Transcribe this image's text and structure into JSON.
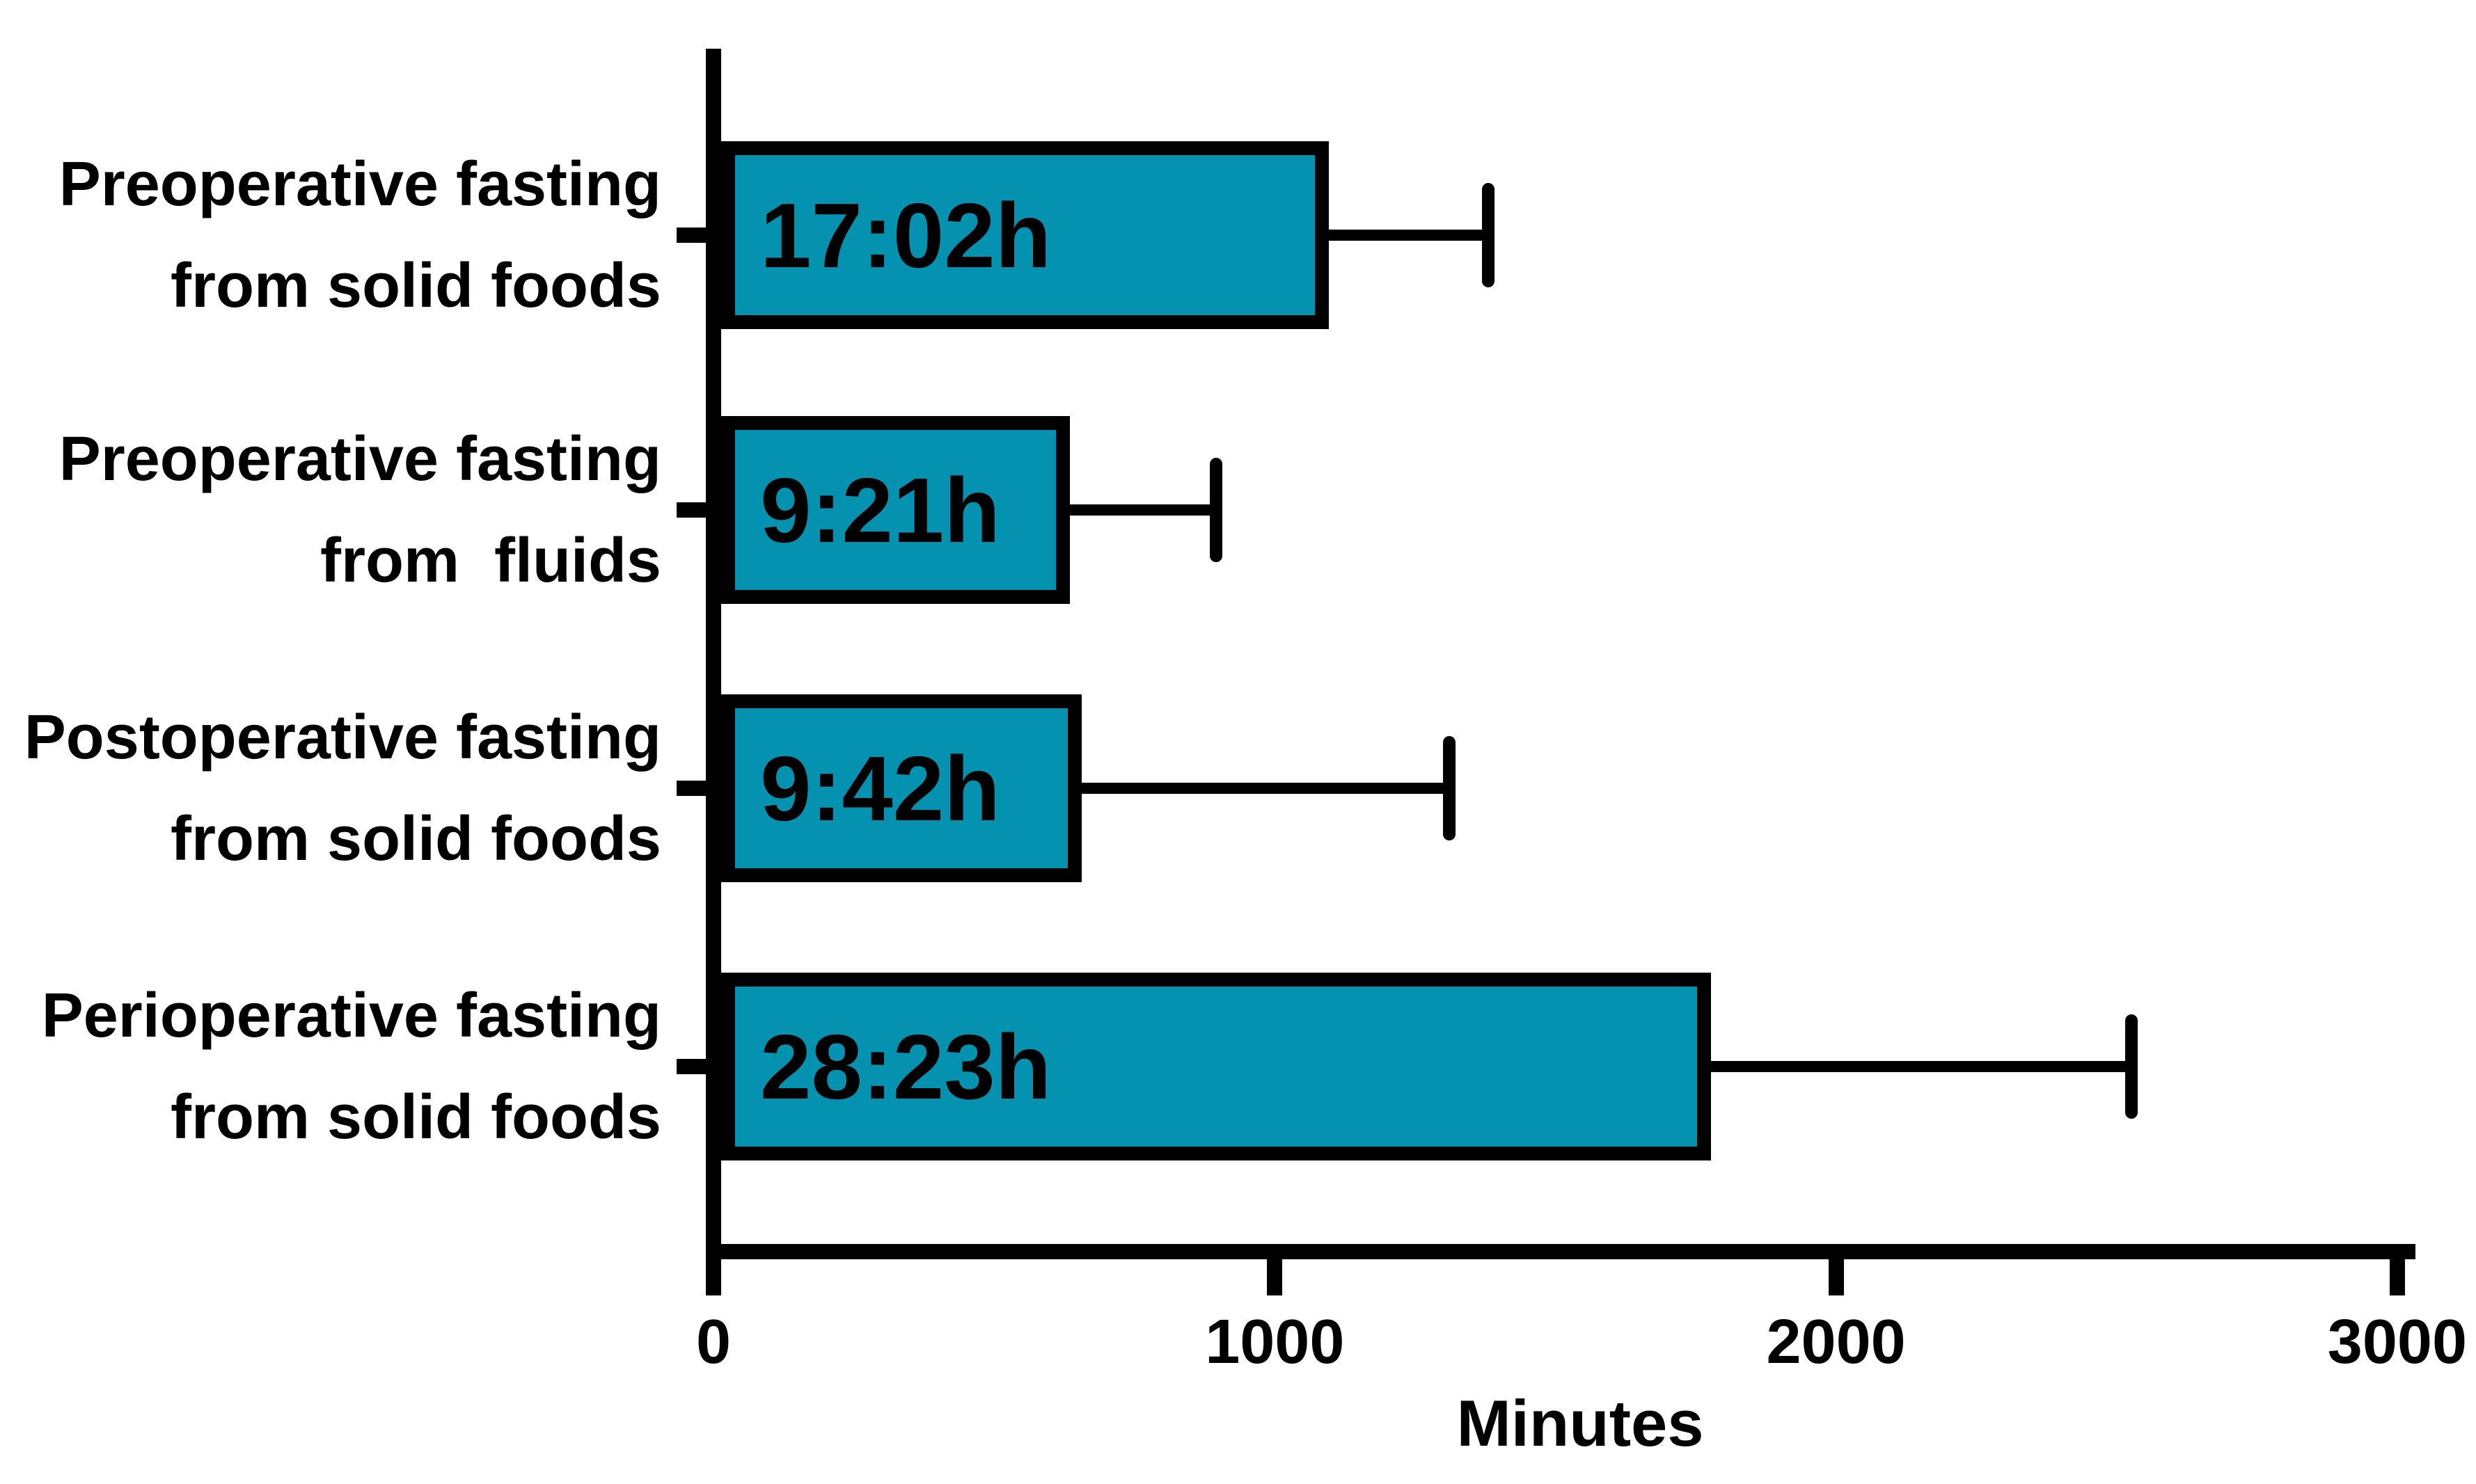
{
  "figure": {
    "background_color": "#ffffff",
    "text_color": "#000000"
  },
  "chart_data": {
    "type": "bar",
    "orientation": "horizontal",
    "title": "",
    "xlabel": "Minutes",
    "ylabel": "",
    "xlim": [
      0,
      3000
    ],
    "x_ticks": [
      0,
      1000,
      2000,
      3000
    ],
    "grid": false,
    "legend": null,
    "bar_color": "#0492B0",
    "bar_border_color": "#000000",
    "error_bar_style": "upper whisker with end cap, mean + SD",
    "categories": [
      {
        "label_line1": "Preoperative fasting",
        "label_line2": "from solid foods",
        "duration_label": "17:02h",
        "mean_minutes": 1022,
        "whisker_end_minutes": 1380,
        "sd_minutes": 358
      },
      {
        "label_line1": "Preoperative fasting",
        "label_line2": "from  fluids",
        "duration_label": "9:21h",
        "mean_minutes": 561,
        "whisker_end_minutes": 895,
        "sd_minutes": 334
      },
      {
        "label_line1": "Postoperative fasting",
        "label_line2": "from solid foods",
        "duration_label": "9:42h",
        "mean_minutes": 582,
        "whisker_end_minutes": 1311,
        "sd_minutes": 729
      },
      {
        "label_line1": "Perioperative fasting",
        "label_line2": "from solid foods",
        "duration_label": "28:23h",
        "mean_minutes": 1703,
        "whisker_end_minutes": 2526,
        "sd_minutes": 823
      }
    ]
  }
}
